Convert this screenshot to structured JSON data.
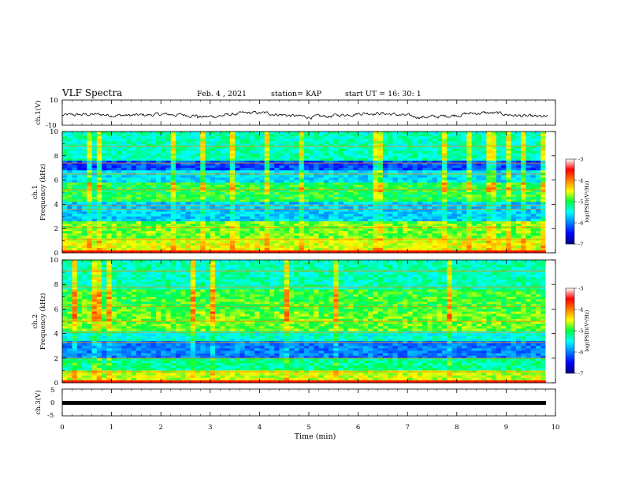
{
  "header": {
    "title": "VLF Spectra",
    "date": "Feb. 4 , 2021",
    "station": "station= KAP",
    "start": "start UT = 16: 30: 1"
  },
  "chart_data": [
    {
      "type": "line",
      "ylabel": "ch.1(V)",
      "ylim": [
        -10,
        10
      ],
      "y_ticks": [
        "10",
        "-10"
      ],
      "xlim": [
        0,
        10
      ]
    },
    {
      "type": "heatmap",
      "ylabel": "ch.1\nFrequency (kHz)",
      "ylim": [
        0,
        10
      ],
      "xlim": [
        0,
        9.8
      ],
      "y_ticks": [
        "0",
        "2",
        "4",
        "6",
        "8",
        "10"
      ],
      "colorbar": {
        "label": "log(PSD)(V²/Hz)",
        "range": [
          -7,
          -3
        ],
        "ticks": [
          "-3",
          "-4",
          "-5",
          "-6",
          "-7"
        ]
      }
    },
    {
      "type": "heatmap",
      "ylabel": "ch.2\nFrequency (kHz)",
      "ylim": [
        0,
        10
      ],
      "xlim": [
        0,
        9.8
      ],
      "y_ticks": [
        "0",
        "2",
        "4",
        "6",
        "8",
        "10"
      ],
      "colorbar": {
        "label": "log(PSD)(V²/Hz)",
        "range": [
          -7,
          -3
        ],
        "ticks": [
          "-3",
          "-4",
          "-5",
          "-6",
          "-7"
        ]
      }
    },
    {
      "type": "line",
      "ylabel": "ch.3(V)",
      "ylim": [
        -5,
        5
      ],
      "y_ticks": [
        "5",
        "0",
        "-5"
      ],
      "xlim": [
        0,
        10
      ]
    }
  ],
  "x_axis": {
    "label": "Time (min)",
    "ticks": [
      "0",
      "1",
      "2",
      "3",
      "4",
      "5",
      "6",
      "7",
      "8",
      "9",
      "10"
    ]
  }
}
